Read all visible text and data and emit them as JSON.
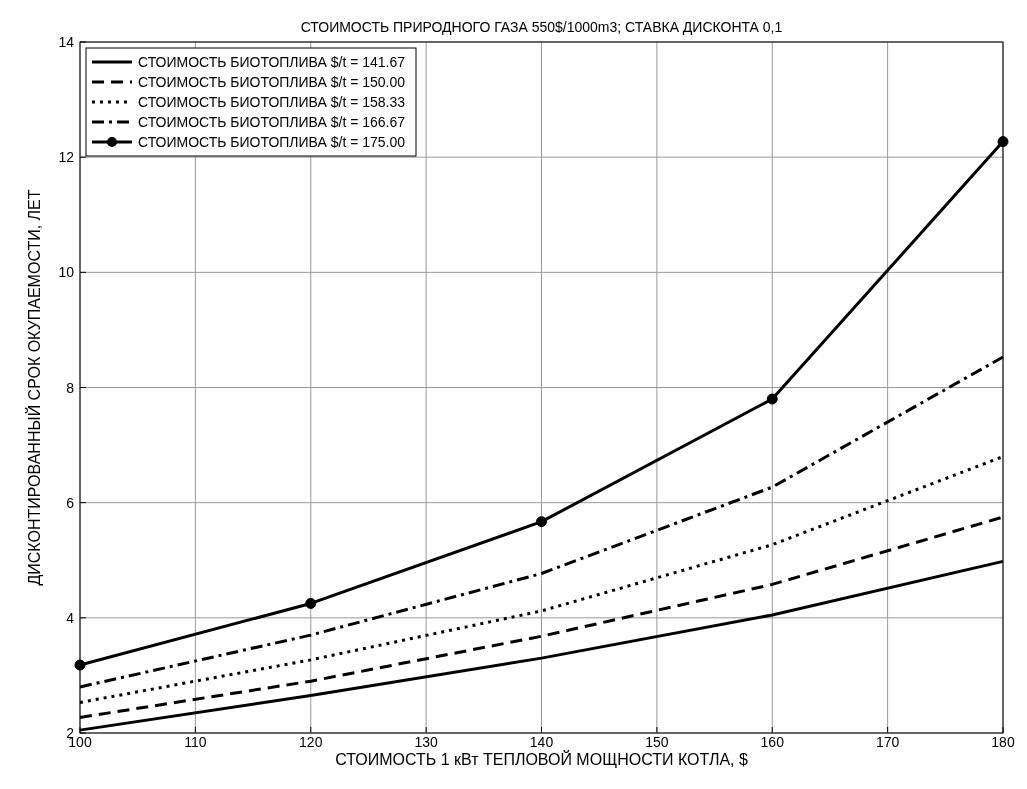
{
  "chart_data": {
    "type": "line",
    "title": "СТОИМОСТЬ ПРИРОДНОГО ГАЗА 550$/1000m3; СТАВКА ДИСКОНТА 0,1",
    "xlabel": "СТОИМОСТЬ 1 кВт ТЕПЛОВОЙ МОЩНОСТИ КОТЛА, $",
    "ylabel": "ДИСКОНТИРОВАННЫЙ СРОК ОКУПАЕМОСТИ, ЛЕТ",
    "x": [
      100,
      120,
      140,
      160,
      180
    ],
    "xlim": [
      100,
      180
    ],
    "xticks": [
      100,
      110,
      120,
      130,
      140,
      150,
      160,
      170,
      180
    ],
    "ylim": [
      2,
      14
    ],
    "yticks": [
      2,
      4,
      6,
      8,
      10,
      12,
      14
    ],
    "grid": true,
    "legend": "top left",
    "series": [
      {
        "name": "СТОИМОСТЬ БИОТОПЛИВА $/t = 141.67",
        "color": "#000000",
        "line_style": "solid",
        "values": [
          2.05,
          2.65,
          3.3,
          4.05,
          4.98
        ]
      },
      {
        "name": "СТОИМОСТЬ БИОТОПЛИВА $/t = 150.00",
        "color": "#000000",
        "line_style": "dashed",
        "values": [
          2.27,
          2.9,
          3.68,
          4.58,
          5.75
        ]
      },
      {
        "name": "СТОИМОСТЬ БИОТОПЛИВА $/t = 158.33",
        "color": "#000000",
        "line_style": "dotted",
        "values": [
          2.53,
          3.27,
          4.12,
          5.27,
          6.8
        ]
      },
      {
        "name": "СТОИМОСТЬ БИОТОПЛИВА $/t = 166.67",
        "color": "#000000",
        "line_style": "dashdot",
        "values": [
          2.8,
          3.7,
          4.77,
          6.27,
          8.53
        ]
      },
      {
        "name": "СТОИМОСТЬ БИОТОПЛИВА $/t = 175.00",
        "color": "#000000",
        "line_style": "solid",
        "marker": "circle",
        "values": [
          3.18,
          4.25,
          5.67,
          7.8,
          12.27
        ]
      }
    ]
  }
}
